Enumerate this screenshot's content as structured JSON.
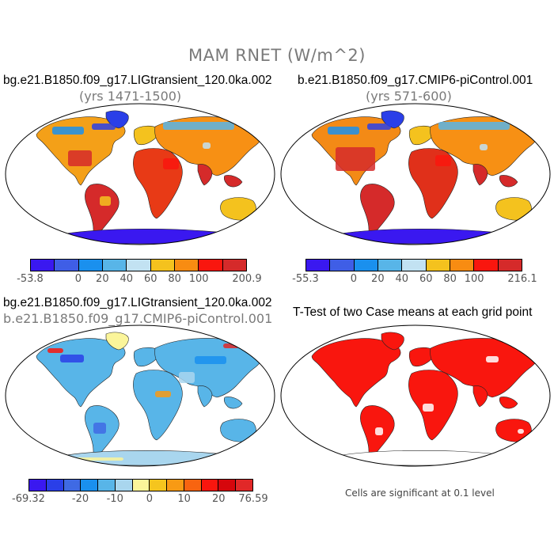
{
  "title": "MAM RNET (W/m^2)",
  "panels": [
    {
      "id": "p1",
      "title": "bg.e21.B1850.f09_g17.LIGtransient_120.0ka.002",
      "subtitle": "(yrs 1471-1500)"
    },
    {
      "id": "p2",
      "title": "b.e21.B1850.f09_g17.CMIP6-piControl.001",
      "subtitle": "(yrs 571-600)"
    },
    {
      "id": "p3",
      "title": "bg.e21.B1850.f09_g17.LIGtransient_120.0ka.002",
      "subtitle": "b.e21.B1850.f09_g17.CMIP6-piControl.001"
    },
    {
      "id": "p4",
      "title": "T-Test of two Case means at each grid point",
      "subtitle": ""
    }
  ],
  "colorbars": [
    {
      "id": "cb1",
      "colors": [
        "#3a18f0",
        "#3f5ee6",
        "#1a90ee",
        "#58b5e8",
        "#c2e2f2",
        "#f4c21e",
        "#f88c12",
        "#f9160e",
        "#d52a2a"
      ],
      "labels": [
        "-53.8",
        "0",
        "20",
        "40",
        "60",
        "80",
        "100",
        "200.9"
      ]
    },
    {
      "id": "cb2",
      "colors": [
        "#3a18f0",
        "#3f5ee6",
        "#1a90ee",
        "#58b5e8",
        "#c2e2f2",
        "#f4c21e",
        "#f88c12",
        "#f9160e",
        "#d52a2a"
      ],
      "labels": [
        "-55.3",
        "0",
        "20",
        "40",
        "60",
        "80",
        "100",
        "216.1"
      ]
    },
    {
      "id": "cb3",
      "colors": [
        "#3a18f0",
        "#2a3fe8",
        "#3f6ae4",
        "#1a90ee",
        "#58b5e8",
        "#a9d6ee",
        "#fbf59a",
        "#f5c51e",
        "#f89a14",
        "#f86410",
        "#f9160e",
        "#d6060c",
        "#e12828"
      ],
      "labels": [
        "-69.32",
        "-20",
        "-10",
        "0",
        "10",
        "20",
        "76.59"
      ]
    }
  ],
  "footnote": "Cells are significant at 0.1 level"
}
